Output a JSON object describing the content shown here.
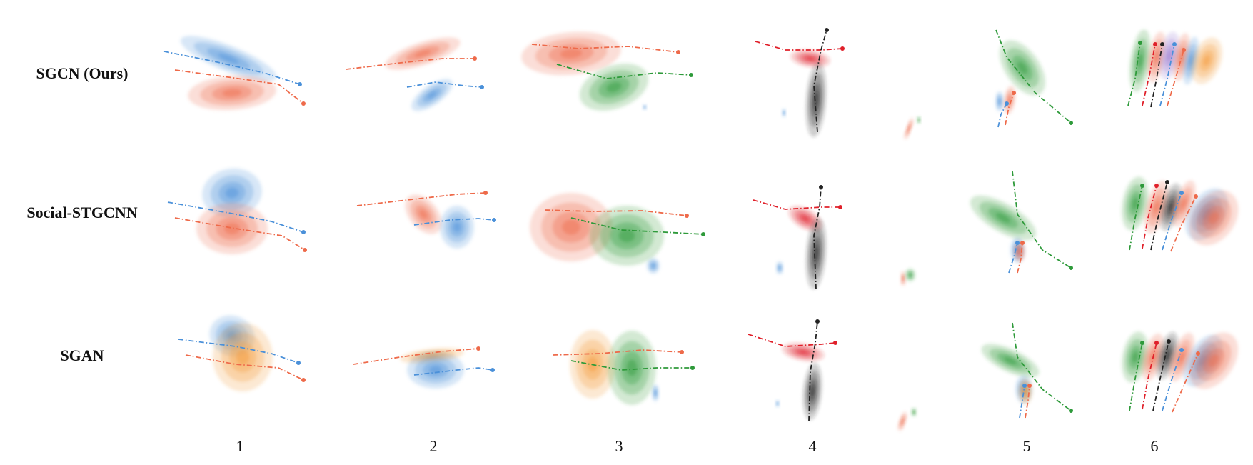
{
  "row_labels": [
    "SGCN (Ours)",
    "Social-STGCNN",
    "SGAN"
  ],
  "column_labels": [
    "1",
    "2",
    "3",
    "4",
    "5",
    "6"
  ],
  "colors": {
    "blue": "#4a90d9",
    "orange_red": "#ee6a4a",
    "orange": "#f39a3c",
    "green": "#2e9a3a",
    "red": "#e0202a",
    "black": "#222222",
    "purple": "#9a7ad0"
  }
}
